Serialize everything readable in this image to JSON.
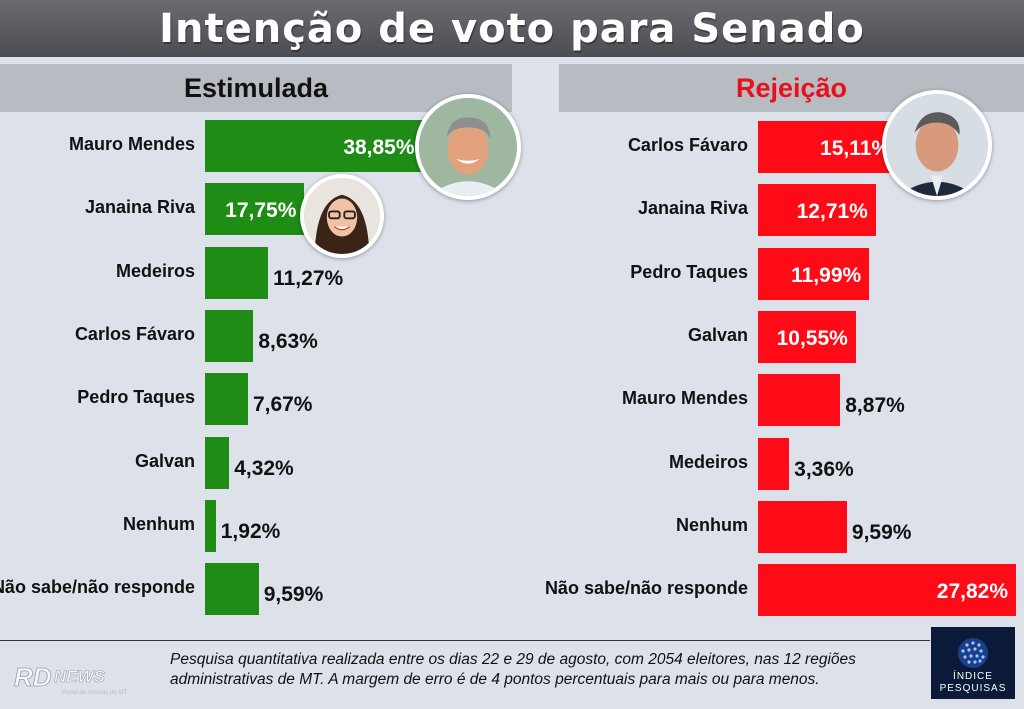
{
  "title": "Intenção de voto para Senado",
  "footnote": {
    "line1": "Pesquisa quantitativa realizada entre os dias 22 e 29 de agosto, com 2054 eleitores, nas 12 regiões",
    "line2": "administrativas de MT. A margem de erro é de 4 pontos percentuais para mais ou para menos."
  },
  "logos": {
    "rd_news": "RD NEWS",
    "rd_news_tagline": "Portal de notícias de MT",
    "indice_line1": "ÍNDICE",
    "indice_line2": "PESQUISAS"
  },
  "colors": {
    "estimulada_bar": "#1e8c15",
    "rejeicao_bar": "#ff0a16",
    "rejeicao_header_text": "#e8101a"
  },
  "chart_data": [
    {
      "type": "bar",
      "orientation": "horizontal",
      "title": "Estimulada",
      "categories": [
        "Mauro Mendes",
        "Janaina Riva",
        "Medeiros",
        "Carlos Fávaro",
        "Pedro Taques",
        "Galvan",
        "Nenhum",
        "Não sabe/não responde"
      ],
      "values": [
        38.85,
        17.75,
        11.27,
        8.63,
        7.67,
        4.32,
        1.92,
        9.59
      ],
      "labels": [
        "38,85%",
        "17,75%",
        "11,27%",
        "8,63%",
        "7,67%",
        "4,32%",
        "1,92%",
        "9,59%"
      ],
      "xlim": [
        0,
        40
      ]
    },
    {
      "type": "bar",
      "orientation": "horizontal",
      "title": "Rejeição",
      "categories": [
        "Carlos Fávaro",
        "Janaina Riva",
        "Pedro Taques",
        "Galvan",
        "Mauro Mendes",
        "Medeiros",
        "Nenhum",
        "Não sabe/não responde"
      ],
      "values": [
        15.11,
        12.71,
        11.99,
        10.55,
        8.87,
        3.36,
        9.59,
        27.82
      ],
      "labels": [
        "15,11%",
        "12,71%",
        "11,99%",
        "10,55%",
        "8,87%",
        "3,36%",
        "9,59%",
        "27,82%"
      ],
      "xlim": [
        0,
        27.82
      ]
    }
  ]
}
